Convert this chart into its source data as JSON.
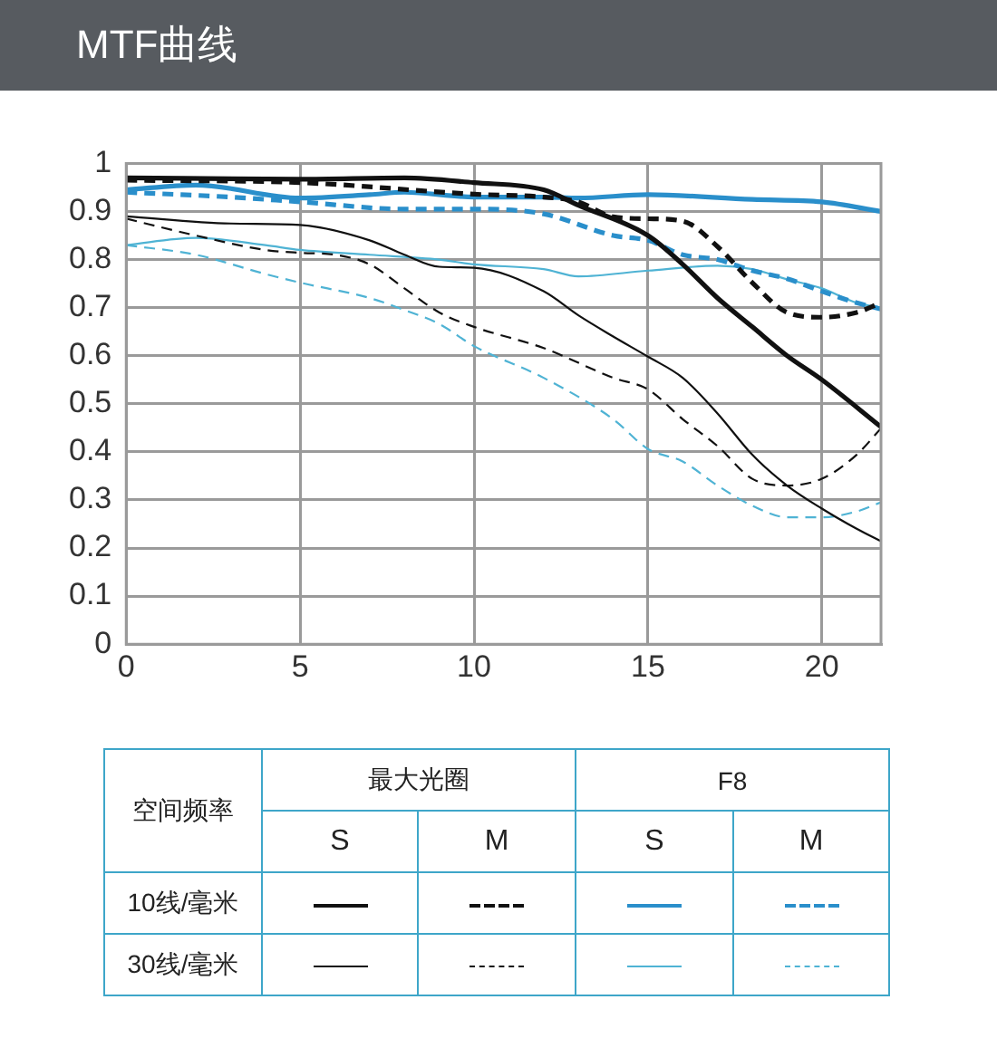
{
  "chart_data": {
    "type": "line",
    "title": "MTF曲线",
    "xlim": [
      0,
      21.7
    ],
    "xticks": [
      0,
      5,
      10,
      15,
      20
    ],
    "ylim": [
      0,
      1
    ],
    "yticks": [
      0,
      0.1,
      0.2,
      0.3,
      0.4,
      0.5,
      0.6,
      0.7,
      0.8,
      0.9,
      1
    ],
    "grid": true,
    "legend": false,
    "marker": "none",
    "annotations": [
      "空间频率",
      "最大光圈",
      "F8",
      "S",
      "M",
      "S",
      "M",
      "10线/毫米",
      "30线/毫米"
    ],
    "series": [
      {
        "color": "#111111",
        "line_style": "solid",
        "x": [
          0,
          5,
          8,
          10,
          12,
          13,
          15,
          16,
          17,
          18,
          19,
          20,
          21.7
        ],
        "values": [
          0.97,
          0.967,
          0.97,
          0.96,
          0.945,
          0.913,
          0.85,
          0.79,
          0.72,
          0.66,
          0.6,
          0.55,
          0.452
        ]
      },
      {
        "color": "#111111",
        "line_style": "dashed",
        "x": [
          0,
          5,
          10,
          12,
          13,
          14,
          15,
          16,
          17,
          18,
          19,
          20,
          21,
          21.7
        ],
        "values": [
          0.965,
          0.96,
          0.936,
          0.93,
          0.92,
          0.889,
          0.885,
          0.88,
          0.827,
          0.752,
          0.69,
          0.68,
          0.69,
          0.71
        ]
      },
      {
        "color": "#2a8fcb",
        "line_style": "solid",
        "x": [
          0,
          2,
          5,
          7,
          8,
          10,
          12,
          13,
          15,
          18,
          20,
          21.7
        ],
        "values": [
          0.945,
          0.955,
          0.928,
          0.935,
          0.94,
          0.93,
          0.93,
          0.928,
          0.935,
          0.925,
          0.92,
          0.9
        ]
      },
      {
        "color": "#2a8fcb",
        "line_style": "dashed",
        "x": [
          0,
          3,
          5,
          8,
          10,
          12,
          14,
          15,
          16,
          17,
          18,
          19,
          20,
          21,
          21.7
        ],
        "values": [
          0.94,
          0.93,
          0.92,
          0.905,
          0.905,
          0.895,
          0.85,
          0.84,
          0.81,
          0.8,
          0.777,
          0.76,
          0.734,
          0.71,
          0.697
        ]
      },
      {
        "color": "#111111",
        "line_style": "solid",
        "x": [
          0,
          3,
          5,
          7,
          8,
          9,
          10,
          12,
          13,
          14,
          15,
          16,
          17,
          18,
          19,
          20,
          21,
          21.7
        ],
        "values": [
          0.89,
          0.875,
          0.872,
          0.84,
          0.81,
          0.785,
          0.783,
          0.734,
          0.684,
          0.64,
          0.598,
          0.554,
          0.48,
          0.394,
          0.33,
          0.282,
          0.24,
          0.214
        ]
      },
      {
        "color": "#111111",
        "line_style": "dashed",
        "x": [
          0,
          2,
          4,
          5,
          6,
          7,
          8,
          9,
          10,
          12,
          14,
          15,
          16,
          17,
          18,
          19,
          20,
          21,
          21.7
        ],
        "values": [
          0.885,
          0.85,
          0.82,
          0.814,
          0.81,
          0.79,
          0.74,
          0.69,
          0.66,
          0.616,
          0.554,
          0.53,
          0.468,
          0.412,
          0.344,
          0.33,
          0.344,
          0.394,
          0.449
        ]
      },
      {
        "color": "#4fb3d4",
        "line_style": "solid",
        "x": [
          0,
          2,
          4,
          5,
          7,
          9,
          10,
          12,
          13,
          15,
          17,
          18,
          19,
          20,
          21,
          21.7
        ],
        "values": [
          0.83,
          0.845,
          0.83,
          0.82,
          0.81,
          0.8,
          0.79,
          0.78,
          0.765,
          0.777,
          0.787,
          0.78,
          0.759,
          0.74,
          0.71,
          0.7
        ]
      },
      {
        "color": "#4fb3d4",
        "line_style": "dashed",
        "x": [
          0,
          2,
          4,
          5,
          7,
          8,
          9,
          10,
          12,
          14,
          15,
          16,
          17,
          18,
          19,
          20,
          21,
          21.7
        ],
        "values": [
          0.83,
          0.81,
          0.77,
          0.752,
          0.72,
          0.695,
          0.666,
          0.62,
          0.554,
          0.468,
          0.406,
          0.38,
          0.33,
          0.288,
          0.264,
          0.264,
          0.276,
          0.295
        ]
      }
    ]
  }
}
